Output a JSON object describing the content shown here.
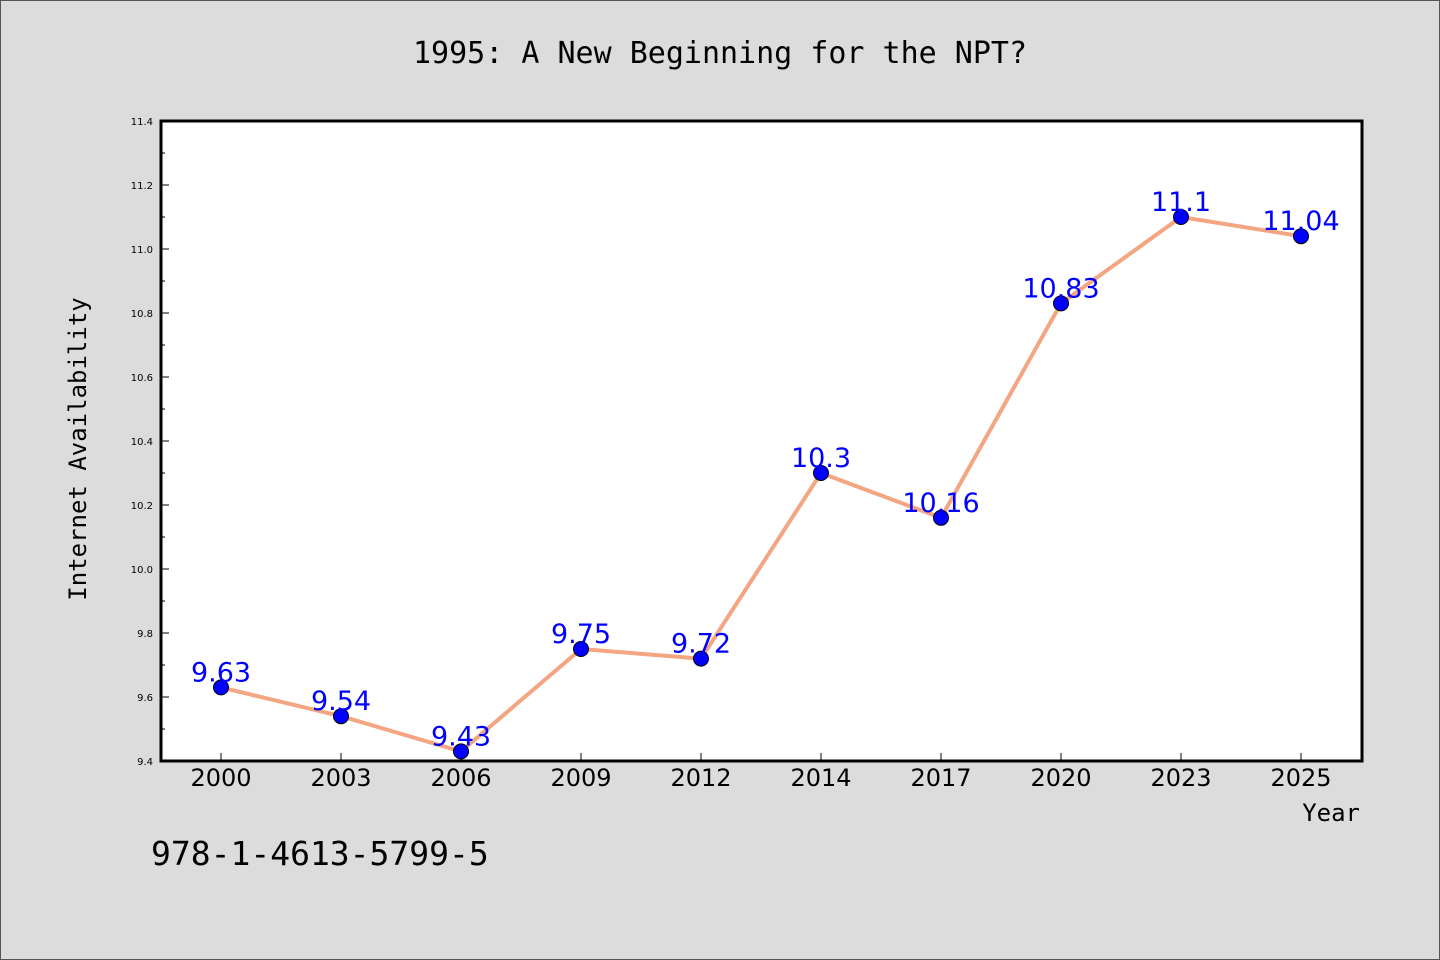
{
  "chart_data": {
    "type": "line",
    "title": "1995: A New Beginning for the NPT?",
    "xlabel": "Year",
    "ylabel": "Internet Availability",
    "categories": [
      "2000",
      "2003",
      "2006",
      "2009",
      "2012",
      "2014",
      "2017",
      "2020",
      "2023",
      "2025"
    ],
    "values": [
      9.63,
      9.54,
      9.43,
      9.75,
      9.72,
      10.3,
      10.16,
      10.83,
      11.1,
      11.04
    ],
    "value_labels": [
      "9.63",
      "9.54",
      "9.43",
      "9.75",
      "9.72",
      "10.3",
      "10.16",
      "10.83",
      "11.1",
      "11.04"
    ],
    "ylim": [
      9.4,
      11.4
    ],
    "yticks": [
      "9.4",
      "9.6",
      "9.8",
      "10.0",
      "10.2",
      "10.4",
      "10.6",
      "10.8",
      "11.0",
      "11.2",
      "11.4"
    ],
    "grid": false,
    "line_color": "#f4a582",
    "marker_color": "#0000ff",
    "label_color": "#0000ff"
  },
  "footnote": "978-1-4613-5799-5"
}
